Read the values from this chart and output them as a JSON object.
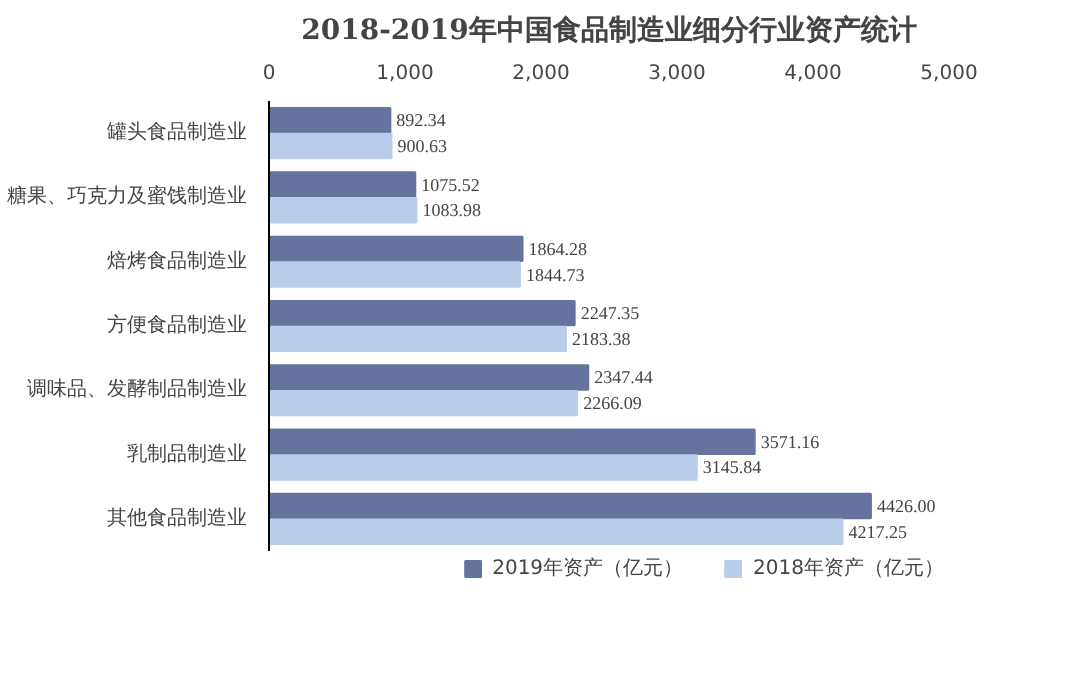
{
  "chart_data": {
    "type": "bar",
    "orientation": "horizontal",
    "title": "2018-2019年中国食品制造业细分行业资产统计",
    "categories": [
      "罐头食品制造业",
      "糖果、巧克力及蜜饯制造业",
      "焙烤食品制造业",
      "方便食品制造业",
      "调味品、发酵制品制造业",
      "乳制品制造业",
      "其他食品制造业"
    ],
    "series": [
      {
        "name": "2019年资产（亿元）",
        "color": "#67739f",
        "values": [
          892.34,
          1075.52,
          1864.28,
          2247.35,
          2347.44,
          3571.16,
          4426.0
        ],
        "value_labels": [
          "892.34",
          "1075.52",
          "1864.28",
          "2247.35",
          "2347.44",
          "3571.16",
          "4426.00"
        ]
      },
      {
        "name": "2018年资产（亿元）",
        "color": "#b9cdea",
        "values": [
          900.63,
          1083.98,
          1844.73,
          2183.38,
          2266.09,
          3145.84,
          4217.25
        ],
        "value_labels": [
          "900.63",
          "1083.98",
          "1844.73",
          "2183.38",
          "2266.09",
          "3145.84",
          "4217.25"
        ]
      }
    ],
    "xlim": [
      0,
      5000
    ],
    "xticks": [
      0,
      {
        "value": 1000,
        "label": "1,000"
      },
      {
        "value": 2000,
        "label": "2,000"
      },
      {
        "value": 3000,
        "label": "3,000"
      },
      {
        "value": 4000,
        "label": "4,000"
      },
      {
        "value": 5000,
        "label": "5,000"
      }
    ],
    "legend": "bottom",
    "grid": false
  }
}
